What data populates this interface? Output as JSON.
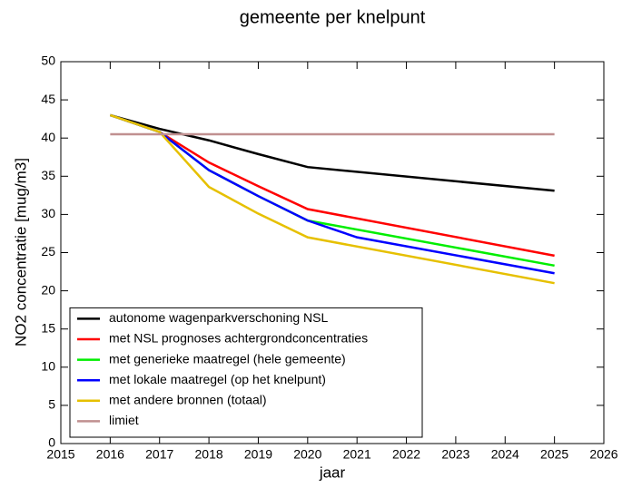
{
  "chart_data": {
    "type": "line",
    "title": "gemeente per knelpunt",
    "xlabel": "jaar",
    "ylabel": "NO2 concentratie [mug/m3]",
    "xlim": [
      2015,
      2026
    ],
    "xticks": [
      2015,
      2016,
      2017,
      2018,
      2019,
      2020,
      2021,
      2022,
      2023,
      2024,
      2025,
      2026
    ],
    "ylim": [
      0,
      50
    ],
    "yticks": [
      0,
      5,
      10,
      15,
      20,
      25,
      30,
      35,
      40,
      45,
      50
    ],
    "legend": "lower left",
    "series": [
      {
        "name": "autonome wagenparkverschoning NSL",
        "color": "#000000",
        "x": [
          2016,
          2017,
          2018,
          2019,
          2020,
          2025
        ],
        "values": [
          43,
          41.2,
          39.7,
          37.9,
          36.2,
          33.1
        ]
      },
      {
        "name": "met NSL prognoses achtergrondconcentraties",
        "color": "#ff0000",
        "x": [
          2016,
          2017,
          2018,
          2019,
          2020,
          2025
        ],
        "values": [
          43,
          40.8,
          36.8,
          33.7,
          30.7,
          24.6
        ]
      },
      {
        "name": "met generieke maatregel (hele gemeente)",
        "color": "#00ee00",
        "x": [
          2016,
          2017,
          2018,
          2019,
          2020,
          2025
        ],
        "values": [
          43,
          40.8,
          35.8,
          32.4,
          29.2,
          23.3
        ]
      },
      {
        "name": "met lokale maatregel (op het knelpunt)",
        "color": "#0000ff",
        "x": [
          2016,
          2017,
          2018,
          2019,
          2020,
          2021,
          2025
        ],
        "values": [
          43,
          40.8,
          35.8,
          32.4,
          29.2,
          27,
          22.3
        ]
      },
      {
        "name": "met andere bronnen (totaal)",
        "color": "#e6c000",
        "x": [
          2016,
          2017,
          2018,
          2019,
          2020,
          2025
        ],
        "values": [
          43,
          40.8,
          33.6,
          30.1,
          27,
          21
        ]
      },
      {
        "name": "limiet",
        "color": "#c09090",
        "x": [
          2016,
          2025
        ],
        "values": [
          40.5,
          40.5
        ]
      }
    ]
  }
}
